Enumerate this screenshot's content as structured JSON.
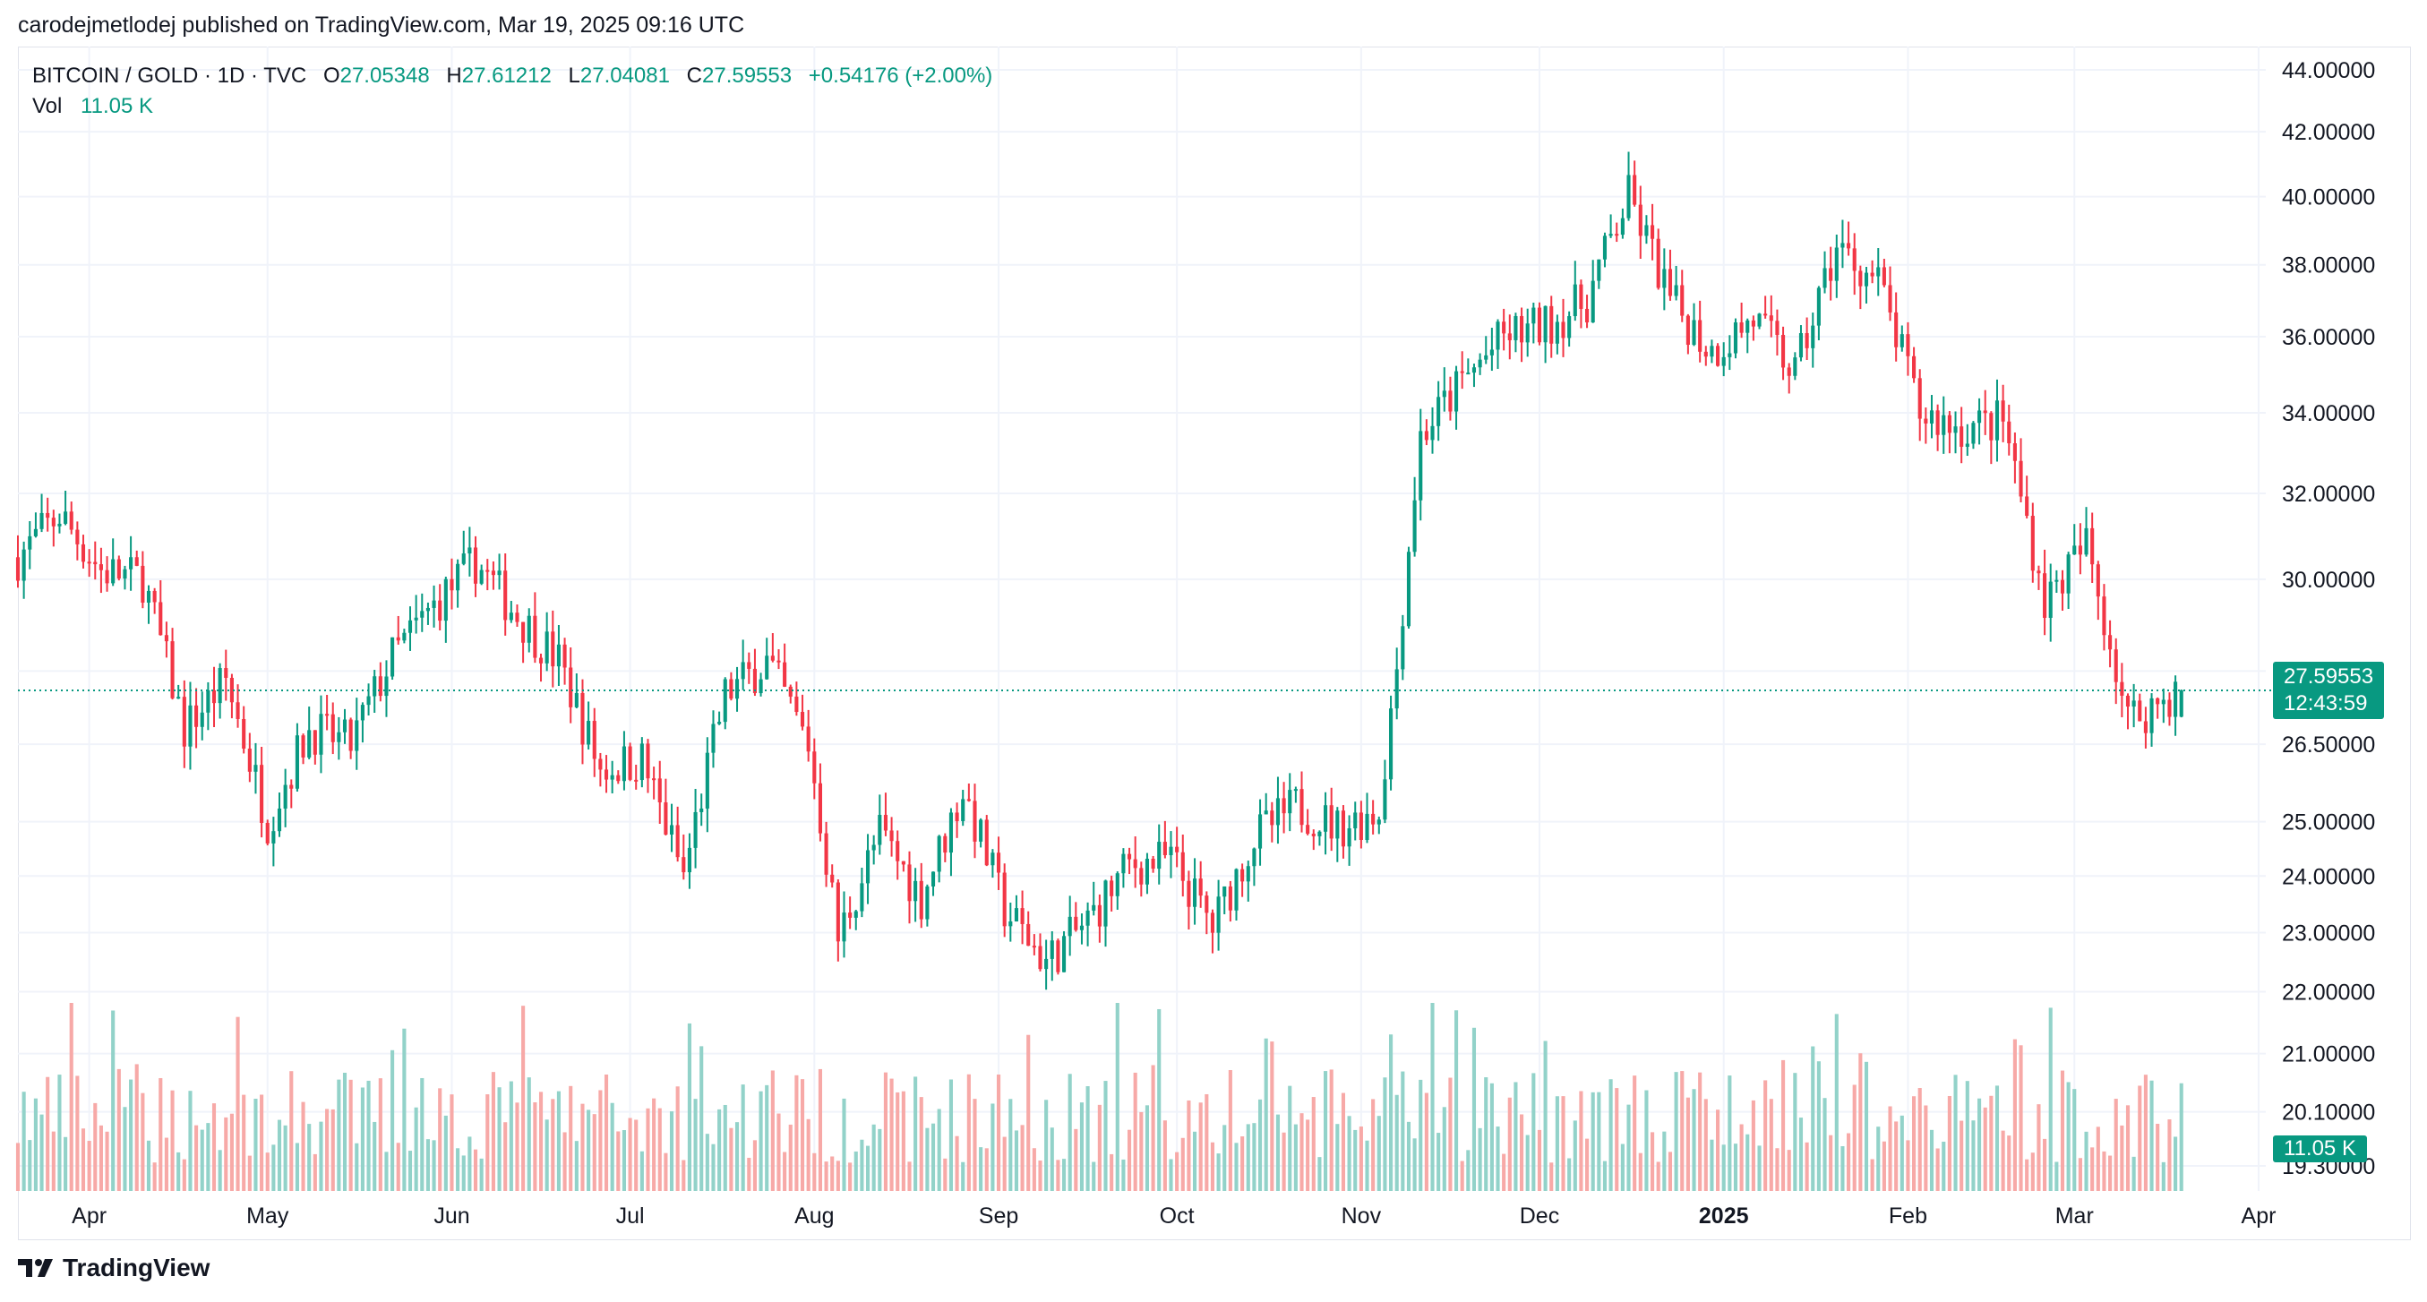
{
  "header": {
    "publisher_line": "carodejmetlodej published on TradingView.com, Mar 19, 2025 09:16 UTC"
  },
  "legend": {
    "symbol": "BITCOIN / GOLD · 1D · TVC",
    "open_label": "O",
    "open": "27.05348",
    "high_label": "H",
    "high": "27.61212",
    "low_label": "L",
    "low": "27.04081",
    "close_label": "C",
    "close": "27.59553",
    "change": "+0.54176 (+2.00%)",
    "vol_label": "Vol",
    "vol": "11.05 K"
  },
  "price_tag": {
    "price": "27.59553",
    "countdown": "12:43:59"
  },
  "volume_tag": "11.05 K",
  "footer": {
    "brand": "TradingView"
  },
  "colors": {
    "up": "#089981",
    "down": "#f23645",
    "up_vol": "#92d2c9",
    "down_vol": "#f7a9a7",
    "grid": "#f0f3fa"
  },
  "chart_data": {
    "type": "candlestick",
    "symbol": "BITCOIN / GOLD",
    "interval": "1D",
    "y_axis_scale": "log",
    "y_ticks": [
      "44.00000",
      "42.00000",
      "40.00000",
      "38.00000",
      "36.00000",
      "34.00000",
      "32.00000",
      "30.00000",
      "28.00000",
      "26.50000",
      "25.00000",
      "24.00000",
      "23.00000",
      "22.00000",
      "21.00000",
      "20.10000",
      "19.30000"
    ],
    "x_ticks": [
      "Apr",
      "May",
      "Jun",
      "Jul",
      "Aug",
      "Sep",
      "Oct",
      "Nov",
      "Dec",
      "2025",
      "Feb",
      "Mar",
      "Apr"
    ],
    "x_range": [
      "2024-03-20",
      "2025-04-01"
    ],
    "last_close": 27.59553,
    "series_close": [
      {
        "date": "2024-03-20",
        "close": 30.5
      },
      {
        "date": "2024-03-27",
        "close": 31.5
      },
      {
        "date": "2024-04-03",
        "close": 30.2
      },
      {
        "date": "2024-04-10",
        "close": 30.0
      },
      {
        "date": "2024-04-17",
        "close": 26.8
      },
      {
        "date": "2024-04-24",
        "close": 27.8
      },
      {
        "date": "2024-05-01",
        "close": 25.0
      },
      {
        "date": "2024-05-08",
        "close": 26.8
      },
      {
        "date": "2024-05-15",
        "close": 26.5
      },
      {
        "date": "2024-05-22",
        "close": 28.3
      },
      {
        "date": "2024-05-29",
        "close": 29.4
      },
      {
        "date": "2024-06-05",
        "close": 30.4
      },
      {
        "date": "2024-06-12",
        "close": 29.2
      },
      {
        "date": "2024-06-19",
        "close": 28.2
      },
      {
        "date": "2024-06-26",
        "close": 26.0
      },
      {
        "date": "2024-07-03",
        "close": 26.2
      },
      {
        "date": "2024-07-10",
        "close": 24.0
      },
      {
        "date": "2024-07-17",
        "close": 27.5
      },
      {
        "date": "2024-07-24",
        "close": 28.2
      },
      {
        "date": "2024-07-31",
        "close": 26.5
      },
      {
        "date": "2024-08-05",
        "close": 22.9
      },
      {
        "date": "2024-08-12",
        "close": 24.8
      },
      {
        "date": "2024-08-19",
        "close": 23.6
      },
      {
        "date": "2024-08-26",
        "close": 25.6
      },
      {
        "date": "2024-09-02",
        "close": 23.4
      },
      {
        "date": "2024-09-09",
        "close": 22.5
      },
      {
        "date": "2024-09-16",
        "close": 23.2
      },
      {
        "date": "2024-09-23",
        "close": 24.2
      },
      {
        "date": "2024-09-30",
        "close": 24.3
      },
      {
        "date": "2024-10-07",
        "close": 23.1
      },
      {
        "date": "2024-10-14",
        "close": 24.7
      },
      {
        "date": "2024-10-21",
        "close": 25.3
      },
      {
        "date": "2024-10-28",
        "close": 24.9
      },
      {
        "date": "2024-11-04",
        "close": 25.2
      },
      {
        "date": "2024-11-07",
        "close": 28.1
      },
      {
        "date": "2024-11-11",
        "close": 33.4
      },
      {
        "date": "2024-11-18",
        "close": 34.8
      },
      {
        "date": "2024-11-25",
        "close": 36.0
      },
      {
        "date": "2024-12-02",
        "close": 36.3
      },
      {
        "date": "2024-12-09",
        "close": 37.0
      },
      {
        "date": "2024-12-16",
        "close": 40.0
      },
      {
        "date": "2024-12-23",
        "close": 37.0
      },
      {
        "date": "2024-12-30",
        "close": 35.6
      },
      {
        "date": "2025-01-06",
        "close": 36.5
      },
      {
        "date": "2025-01-13",
        "close": 35.0
      },
      {
        "date": "2025-01-20",
        "close": 38.5
      },
      {
        "date": "2025-01-27",
        "close": 37.5
      },
      {
        "date": "2025-02-03",
        "close": 34.0
      },
      {
        "date": "2025-02-10",
        "close": 33.6
      },
      {
        "date": "2025-02-17",
        "close": 33.8
      },
      {
        "date": "2025-02-24",
        "close": 29.5
      },
      {
        "date": "2025-03-03",
        "close": 30.8
      },
      {
        "date": "2025-03-10",
        "close": 27.0
      },
      {
        "date": "2025-03-19",
        "close": 27.59553
      }
    ]
  }
}
